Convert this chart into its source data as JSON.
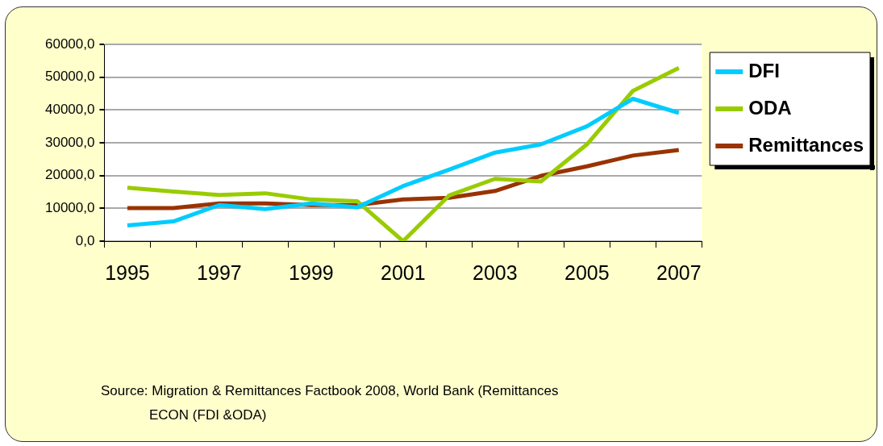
{
  "chart_data": {
    "type": "line",
    "categories": [
      "1995",
      null,
      "1997",
      null,
      "1999",
      null,
      "2001",
      null,
      "2003",
      null,
      "2005",
      null,
      "2007"
    ],
    "series": [
      {
        "name": "DFI",
        "color": "#00ccff",
        "values": [
          4800,
          6000,
          11000,
          9800,
          11500,
          10300,
          16800,
          21800,
          27000,
          29500,
          35000,
          43400,
          39100
        ]
      },
      {
        "name": "ODA",
        "color": "#99cc00",
        "values": [
          16300,
          15100,
          14100,
          14600,
          12700,
          12200,
          0,
          13900,
          19000,
          18200,
          29500,
          45800,
          52800
        ]
      },
      {
        "name": "Remittances",
        "color": "#993300",
        "values": [
          10100,
          10100,
          11500,
          11500,
          11000,
          11000,
          12700,
          13200,
          15300,
          19900,
          22800,
          26100,
          27800
        ]
      }
    ],
    "ylim": [
      0,
      60000
    ],
    "yticks": [
      {
        "value": 0,
        "label": "0,0"
      },
      {
        "value": 10000,
        "label": "10000,0"
      },
      {
        "value": 20000,
        "label": "20000,0"
      },
      {
        "value": 30000,
        "label": "30000,0"
      },
      {
        "value": 40000,
        "label": "40000,0"
      },
      {
        "value": 50000,
        "label": "50000,0"
      },
      {
        "value": 60000,
        "label": "60000,0"
      }
    ],
    "grid": "y",
    "legend": "right",
    "marker": "none",
    "line_style": "solid",
    "annotations": [
      "Source: Migration & Remittances Factbook 2008, World Bank (Remittances",
      "ECON (FDI &ODA)"
    ]
  }
}
